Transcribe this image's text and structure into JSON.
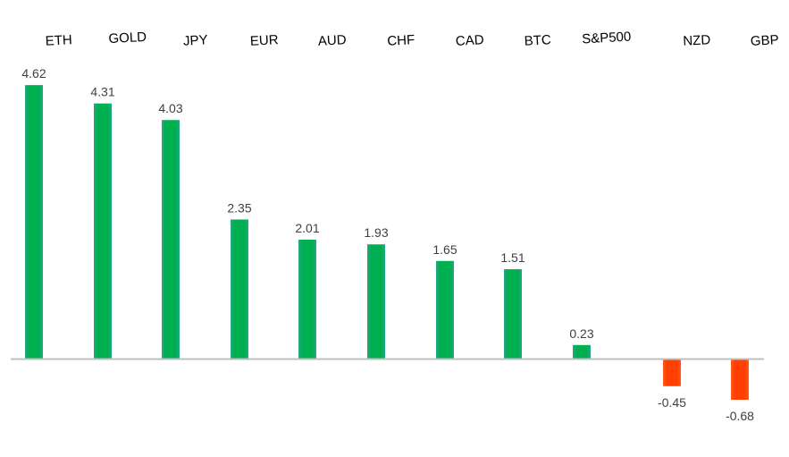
{
  "chart_data": {
    "type": "bar",
    "title": "",
    "xlabel": "",
    "ylabel": "",
    "categories": [
      "ETH",
      "GOLD",
      "JPY",
      "EUR",
      "AUD",
      "CHF",
      "CAD",
      "BTC",
      "S&P500",
      "NZD",
      "GBP"
    ],
    "values": [
      4.62,
      4.31,
      4.03,
      2.35,
      2.01,
      1.93,
      1.65,
      1.51,
      0.23,
      -0.45,
      -0.68
    ],
    "value_labels": [
      "4.62",
      "4.31",
      "4.03",
      "2.35",
      "2.01",
      "1.93",
      "1.65",
      "1.51",
      "0.23",
      "-0.45",
      "-0.68"
    ],
    "legend": "none",
    "grid": false,
    "colors": {
      "positive": "#00b050",
      "positive_edge": "#2aa58a",
      "negative": "#ff4000",
      "axis": "#bfbfbf"
    }
  }
}
